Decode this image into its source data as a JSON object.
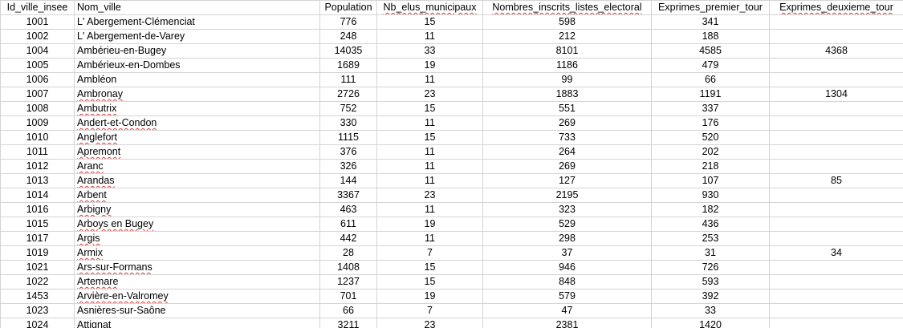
{
  "headers": [
    "Id_ville_insee",
    "Nom_ville",
    "Population",
    "Nb_elus_municipaux",
    "Nombres_inscrits_listes_electoral",
    "Exprimes_premier_tour",
    "Exprimes_deuxieme_tour"
  ],
  "rows": [
    [
      "1001",
      "L' Abergement-Clémenciat",
      "776",
      "15",
      "598",
      "341",
      ""
    ],
    [
      "1002",
      "L' Abergement-de-Varey",
      "248",
      "11",
      "212",
      "188",
      ""
    ],
    [
      "1004",
      "Ambérieu-en-Bugey",
      "14035",
      "33",
      "8101",
      "4585",
      "4368"
    ],
    [
      "1005",
      "Ambérieux-en-Dombes",
      "1689",
      "19",
      "1186",
      "479",
      ""
    ],
    [
      "1006",
      "Ambléon",
      "111",
      "11",
      "99",
      "66",
      ""
    ],
    [
      "1007",
      "Ambronay",
      "2726",
      "23",
      "1883",
      "1191",
      "1304"
    ],
    [
      "1008",
      "Ambutrix",
      "752",
      "15",
      "551",
      "337",
      ""
    ],
    [
      "1009",
      "Andert-et-Condon",
      "330",
      "11",
      "269",
      "176",
      ""
    ],
    [
      "1010",
      "Anglefort",
      "1115",
      "15",
      "733",
      "520",
      ""
    ],
    [
      "1011",
      "Apremont",
      "376",
      "11",
      "264",
      "202",
      ""
    ],
    [
      "1012",
      "Aranc",
      "326",
      "11",
      "269",
      "218",
      ""
    ],
    [
      "1013",
      "Arandas",
      "144",
      "11",
      "127",
      "107",
      "85"
    ],
    [
      "1014",
      "Arbent",
      "3367",
      "23",
      "2195",
      "930",
      ""
    ],
    [
      "1016",
      "Arbigny",
      "463",
      "11",
      "323",
      "182",
      ""
    ],
    [
      "1015",
      "Arboys en Bugey",
      "611",
      "19",
      "529",
      "436",
      ""
    ],
    [
      "1017",
      "Argis",
      "442",
      "11",
      "298",
      "253",
      ""
    ],
    [
      "1019",
      "Armix",
      "28",
      "7",
      "37",
      "31",
      "34"
    ],
    [
      "1021",
      "Ars-sur-Formans",
      "1408",
      "15",
      "946",
      "726",
      ""
    ],
    [
      "1022",
      "Artemare",
      "1237",
      "15",
      "848",
      "593",
      ""
    ],
    [
      "1453",
      "Arvière-en-Valromey",
      "701",
      "19",
      "579",
      "392",
      ""
    ],
    [
      "1023",
      "Asnières-sur-Saône",
      "66",
      "7",
      "47",
      "33",
      ""
    ],
    [
      "1024",
      "Attignat",
      "3211",
      "23",
      "2381",
      "1420",
      ""
    ]
  ],
  "colors": {
    "grid": "#d4d4d4",
    "spellcheck": "#d83b3b"
  }
}
